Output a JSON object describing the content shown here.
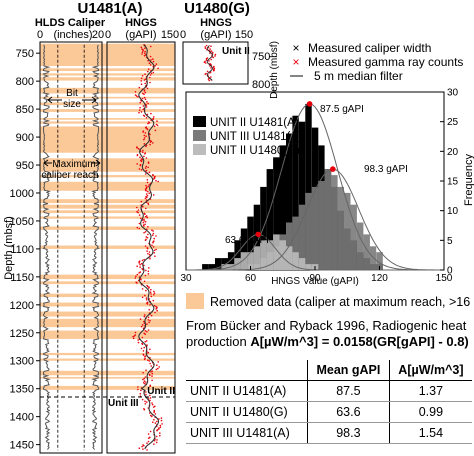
{
  "site_titles": {
    "left": "U1481(A)",
    "right": "U1480(G)"
  },
  "colors": {
    "removed": "#fbc898",
    "gr_red": "#e8000b",
    "dark_gray": "#333333",
    "black": "#000000",
    "gray1": "#7a7a7a",
    "gray2": "#bcbcbc"
  },
  "caliper_track": {
    "title": "HLDS Caliper",
    "axis_min": "0",
    "axis_max": "20",
    "units": "(inches)",
    "annotations": {
      "bit_size_1": "Bit",
      "bit_size_2": "size",
      "max_reach_1": "Maximum",
      "max_reach_2": "caliper reach"
    }
  },
  "hngs_track": {
    "title": "HNGS",
    "axis_min": "0",
    "axis_max": "150",
    "units": "(gAPI)",
    "unit_labels": {
      "unit2": "Unit II",
      "unit3": "Unit III"
    }
  },
  "depth_axis": {
    "label": "Depth (mbsf)",
    "ticks": [
      "750",
      "800",
      "850",
      "900",
      "950",
      "1000",
      "1050",
      "1100",
      "1150",
      "1200",
      "1250",
      "1300",
      "1350",
      "1400",
      "1450"
    ]
  },
  "inset": {
    "title": "HNGS",
    "axis_min": "0",
    "axis_max": "150",
    "units": "(gAPI)",
    "unit_label": "Unit II",
    "depth_label": "Depth (mbsf)",
    "depth_ticks": [
      "750",
      "800"
    ]
  },
  "legend": {
    "caliper": "Measured caliper width",
    "gamma": "Measured gamma ray counts",
    "median": "5 m median filter",
    "removed": "Removed data (caliper at maximum reach, >16 in)"
  },
  "histogram": {
    "xlabel": "HNGS Value (gAPI)",
    "ylabel": "Frequency",
    "x_ticks": [
      "30",
      "60",
      "90",
      "120",
      "150"
    ],
    "y_ticks": [
      "0",
      "5",
      "10",
      "15",
      "20",
      "25",
      "30"
    ],
    "legend": [
      "UNIT II U1481(A)",
      "UNIT III U1481(A)",
      "UNIT II U1480(G)"
    ],
    "peak_labels": [
      "87.5 gAPI",
      "98.3 gAPI",
      "63.6 gAPI"
    ]
  },
  "chart_data": {
    "type": "bar",
    "title": "",
    "xlabel": "HNGS Value (gAPI)",
    "ylabel": "Frequency",
    "xlim": [
      30,
      150
    ],
    "ylim": [
      0,
      30
    ],
    "x": [
      39,
      42,
      45,
      48,
      51,
      54,
      57,
      60,
      63,
      66,
      69,
      72,
      75,
      78,
      81,
      84,
      87,
      90,
      93,
      96,
      99,
      102,
      105,
      108,
      111,
      114,
      117,
      120
    ],
    "series": [
      {
        "name": "UNIT II U1481(A)",
        "values": [
          1,
          1,
          2,
          2,
          3,
          5,
          7,
          9,
          11,
          14,
          17,
          19,
          21,
          23,
          26,
          25,
          28,
          24,
          21,
          17,
          14,
          10,
          7,
          5,
          3,
          2,
          1,
          1
        ]
      },
      {
        "name": "UNIT III U1481(A)",
        "values": [
          0,
          0,
          0,
          0,
          0,
          0,
          0,
          1,
          1,
          2,
          3,
          4,
          6,
          8,
          9,
          11,
          13,
          14,
          15,
          17,
          16,
          14,
          13,
          11,
          8,
          6,
          4,
          3
        ]
      },
      {
        "name": "UNIT II U1480(G)",
        "values": [
          0,
          0,
          0,
          1,
          1,
          2,
          3,
          3,
          4,
          5,
          5,
          6,
          5,
          4,
          3,
          2,
          1,
          1,
          0,
          0,
          0,
          0,
          0,
          0,
          0,
          0,
          0,
          0
        ]
      }
    ],
    "peaks": [
      {
        "series": "UNIT II U1481(A)",
        "x": 87.5
      },
      {
        "series": "UNIT III U1481(A)",
        "x": 98.3
      },
      {
        "series": "UNIT II U1480(G)",
        "x": 63.6
      }
    ]
  },
  "note": {
    "line1": "From Bücker and Ryback 1996, Radiogenic heat",
    "line2_plain": "production ",
    "line2_bold": "A[µW/m^3] = 0.0158(GR[gAPI] - 0.8)"
  },
  "table": {
    "headers": [
      "",
      "Mean gAPI",
      "A[µW/m^3]"
    ],
    "rows": [
      [
        "UNIT II U1481(A)",
        "87.5",
        "1.37"
      ],
      [
        "UNIT II U1480(G)",
        "63.6",
        "0.99"
      ],
      [
        "UNIT III U1481(A)",
        "98.3",
        "1.54"
      ]
    ]
  },
  "removed_intervals": [
    [
      733,
      773
    ],
    [
      777,
      782
    ],
    [
      786,
      790
    ],
    [
      793,
      799
    ],
    [
      812,
      822
    ],
    [
      828,
      831
    ],
    [
      838,
      843
    ],
    [
      850,
      855
    ],
    [
      866,
      869
    ],
    [
      872,
      876
    ],
    [
      881,
      928
    ],
    [
      938,
      962
    ],
    [
      968,
      972
    ],
    [
      980,
      996
    ],
    [
      1011,
      1018
    ],
    [
      1021,
      1028
    ],
    [
      1031,
      1036
    ],
    [
      1042,
      1046
    ],
    [
      1060,
      1066
    ],
    [
      1094,
      1100
    ],
    [
      1146,
      1154
    ],
    [
      1158,
      1163
    ],
    [
      1180,
      1186
    ],
    [
      1196,
      1203
    ],
    [
      1212,
      1221
    ],
    [
      1225,
      1240
    ],
    [
      1246,
      1261
    ],
    [
      1286,
      1290
    ],
    [
      1296,
      1300
    ],
    [
      1318,
      1326
    ],
    [
      1329,
      1332
    ],
    [
      1345,
      1352
    ]
  ]
}
